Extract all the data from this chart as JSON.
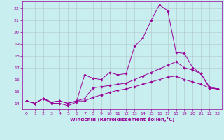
{
  "xlabel": "Windchill (Refroidissement éolien,°C)",
  "ylabel": "",
  "bg_color": "#c8eef0",
  "line_color": "#990099",
  "grid_color": "#b0c8c8",
  "xlim": [
    -0.5,
    23.5
  ],
  "ylim": [
    13.5,
    22.6
  ],
  "xticks": [
    0,
    1,
    2,
    3,
    4,
    5,
    6,
    7,
    8,
    9,
    10,
    11,
    12,
    13,
    14,
    15,
    16,
    17,
    18,
    19,
    20,
    21,
    22,
    23
  ],
  "yticks": [
    14,
    15,
    16,
    17,
    18,
    19,
    20,
    21,
    22
  ],
  "line1_x": [
    0,
    1,
    2,
    3,
    4,
    5,
    6,
    7,
    8,
    9,
    10,
    11,
    12,
    13,
    14,
    15,
    16,
    17,
    18,
    19,
    20,
    21,
    22,
    23
  ],
  "line1_y": [
    14.2,
    14.0,
    14.4,
    14.0,
    14.0,
    13.8,
    14.1,
    16.4,
    16.1,
    16.0,
    16.6,
    16.4,
    16.5,
    18.8,
    19.5,
    21.0,
    22.3,
    21.8,
    18.3,
    18.2,
    17.0,
    16.5,
    15.3,
    15.2
  ],
  "line2_x": [
    0,
    1,
    2,
    3,
    4,
    5,
    6,
    7,
    8,
    9,
    10,
    11,
    12,
    13,
    14,
    15,
    16,
    17,
    18,
    19,
    20,
    21,
    22,
    23
  ],
  "line2_y": [
    14.2,
    14.0,
    14.4,
    14.1,
    14.2,
    14.0,
    14.2,
    14.4,
    15.3,
    15.4,
    15.5,
    15.6,
    15.7,
    16.0,
    16.3,
    16.6,
    16.9,
    17.2,
    17.5,
    17.0,
    16.8,
    16.5,
    15.4,
    15.2
  ],
  "line3_x": [
    0,
    1,
    2,
    3,
    4,
    5,
    6,
    7,
    8,
    9,
    10,
    11,
    12,
    13,
    14,
    15,
    16,
    17,
    18,
    19,
    20,
    21,
    22,
    23
  ],
  "line3_y": [
    14.2,
    14.0,
    14.4,
    14.1,
    14.2,
    14.0,
    14.2,
    14.2,
    14.5,
    14.7,
    14.9,
    15.1,
    15.2,
    15.4,
    15.6,
    15.8,
    16.0,
    16.2,
    16.3,
    16.0,
    15.8,
    15.6,
    15.3,
    15.2
  ],
  "tick_fontsize": 4.5,
  "xlabel_fontsize": 5.0,
  "marker_size": 1.8,
  "line_width": 0.7
}
